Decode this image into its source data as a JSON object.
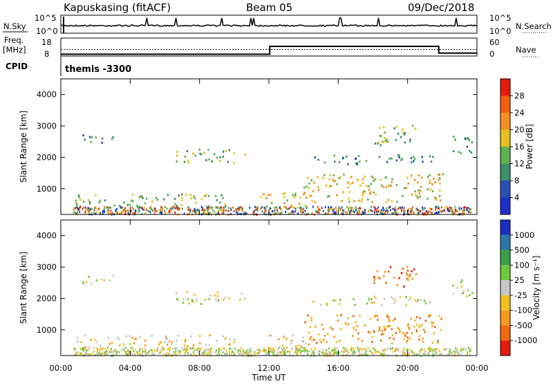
{
  "header": {
    "station": "Kapuskasing (fitACF)",
    "beam": "Beam 05",
    "date": "09/Dec/2018"
  },
  "status": {
    "nsky_label": "N.Sky",
    "nsky_ticks": [
      "10^5",
      "10^0"
    ],
    "nsearch_label": "N.Search",
    "nsearch_ticks": [
      "10^5",
      "10^0"
    ],
    "freq_label_1": "Freq.",
    "freq_label_2": "[MHz]",
    "freq_ticks": [
      "18",
      "8"
    ],
    "nave_label": "Nave",
    "nave_ticks": [
      "60",
      "0"
    ],
    "cpid_label": "CPID",
    "cpid_value": "themis -3300",
    "freq_trace": [
      {
        "t": 0.0,
        "f": 9.0
      },
      {
        "t": 12.05,
        "f": 9.0
      },
      {
        "t": 12.05,
        "f": 13.4
      },
      {
        "t": 21.8,
        "f": 13.4
      },
      {
        "t": 21.8,
        "f": 9.6
      },
      {
        "t": 24.0,
        "f": 9.6
      }
    ],
    "freq_ref": 11.6,
    "freq_range": [
      8,
      18
    ]
  },
  "chart_data": [
    {
      "type": "heatmap",
      "panel": "power",
      "ylabel": "Slant Range [km]",
      "xlim": [
        "00:00",
        "24:00"
      ],
      "ylim": [
        180,
        4500
      ],
      "yticks": [
        "1000",
        "2000",
        "3000",
        "4000"
      ],
      "ytick_values": [
        1000,
        2000,
        3000,
        4000
      ],
      "colorbar": {
        "label": "Power [dB]",
        "ticks": [
          "4",
          "8",
          "12",
          "16",
          "20",
          "24",
          "28"
        ],
        "colors": [
          "#1f30c8",
          "#2b4fb0",
          "#3f8f6a",
          "#60b050",
          "#e8c020",
          "#f59020",
          "#f06010",
          "#e51c0c"
        ]
      },
      "echo_regions": [
        {
          "t0": 1.2,
          "t1": 3.0,
          "r0": 2480,
          "r1": 2780,
          "level": 2
        },
        {
          "t0": 6.6,
          "t1": 10.6,
          "r0": 1850,
          "r1": 2280,
          "level": 3
        },
        {
          "t0": 0.8,
          "t1": 10.0,
          "r0": 430,
          "r1": 860,
          "level": 3
        },
        {
          "t0": 11.5,
          "t1": 14.5,
          "r0": 380,
          "r1": 900,
          "level": 4
        },
        {
          "t0": 14.0,
          "t1": 22.0,
          "r0": 600,
          "r1": 1500,
          "level": 4
        },
        {
          "t0": 18.0,
          "t1": 20.5,
          "r0": 2400,
          "r1": 3050,
          "level": 3
        },
        {
          "t0": 14.5,
          "t1": 21.5,
          "r0": 1800,
          "r1": 2100,
          "level": 2
        },
        {
          "t0": 22.5,
          "t1": 23.8,
          "r0": 2100,
          "r1": 2700,
          "level": 2
        }
      ]
    },
    {
      "type": "heatmap",
      "panel": "velocity",
      "ylabel": "Slant Range [km]",
      "xlabel": "Time UT",
      "xlim": [
        "00:00",
        "24:00"
      ],
      "xticks": [
        "00:00",
        "04:00",
        "08:00",
        "12:00",
        "16:00",
        "20:00",
        "00:00"
      ],
      "ylim": [
        180,
        4500
      ],
      "yticks": [
        "1000",
        "2000",
        "3000",
        "4000"
      ],
      "ytick_values": [
        1000,
        2000,
        3000,
        4000
      ],
      "colorbar": {
        "label": "Velocity [m s⁻¹]",
        "ticks": [
          "1000",
          "500",
          "100",
          "25",
          "-25",
          "-100",
          "-500",
          "-1000"
        ],
        "colors": [
          "#1a2ec0",
          "#2c78a8",
          "#3aa048",
          "#70c83c",
          "#c8c8c8",
          "#f0c020",
          "#f59a20",
          "#f06a10",
          "#e51c0c"
        ]
      },
      "echo_regions": [
        {
          "t0": 1.2,
          "t1": 3.0,
          "r0": 2480,
          "r1": 2780,
          "level": 4
        },
        {
          "t0": 6.6,
          "t1": 10.6,
          "r0": 1850,
          "r1": 2280,
          "level": 4
        },
        {
          "t0": 0.8,
          "t1": 10.0,
          "r0": 430,
          "r1": 860,
          "level": 5
        },
        {
          "t0": 11.5,
          "t1": 14.5,
          "r0": 380,
          "r1": 900,
          "level": 5
        },
        {
          "t0": 14.0,
          "t1": 22.0,
          "r0": 600,
          "r1": 1500,
          "level": 6
        },
        {
          "t0": 18.0,
          "t1": 20.5,
          "r0": 2400,
          "r1": 3050,
          "level": 7
        },
        {
          "t0": 14.5,
          "t1": 21.5,
          "r0": 1800,
          "r1": 2100,
          "level": 4
        },
        {
          "t0": 22.5,
          "t1": 23.8,
          "r0": 2100,
          "r1": 2700,
          "level": 4
        }
      ]
    }
  ]
}
